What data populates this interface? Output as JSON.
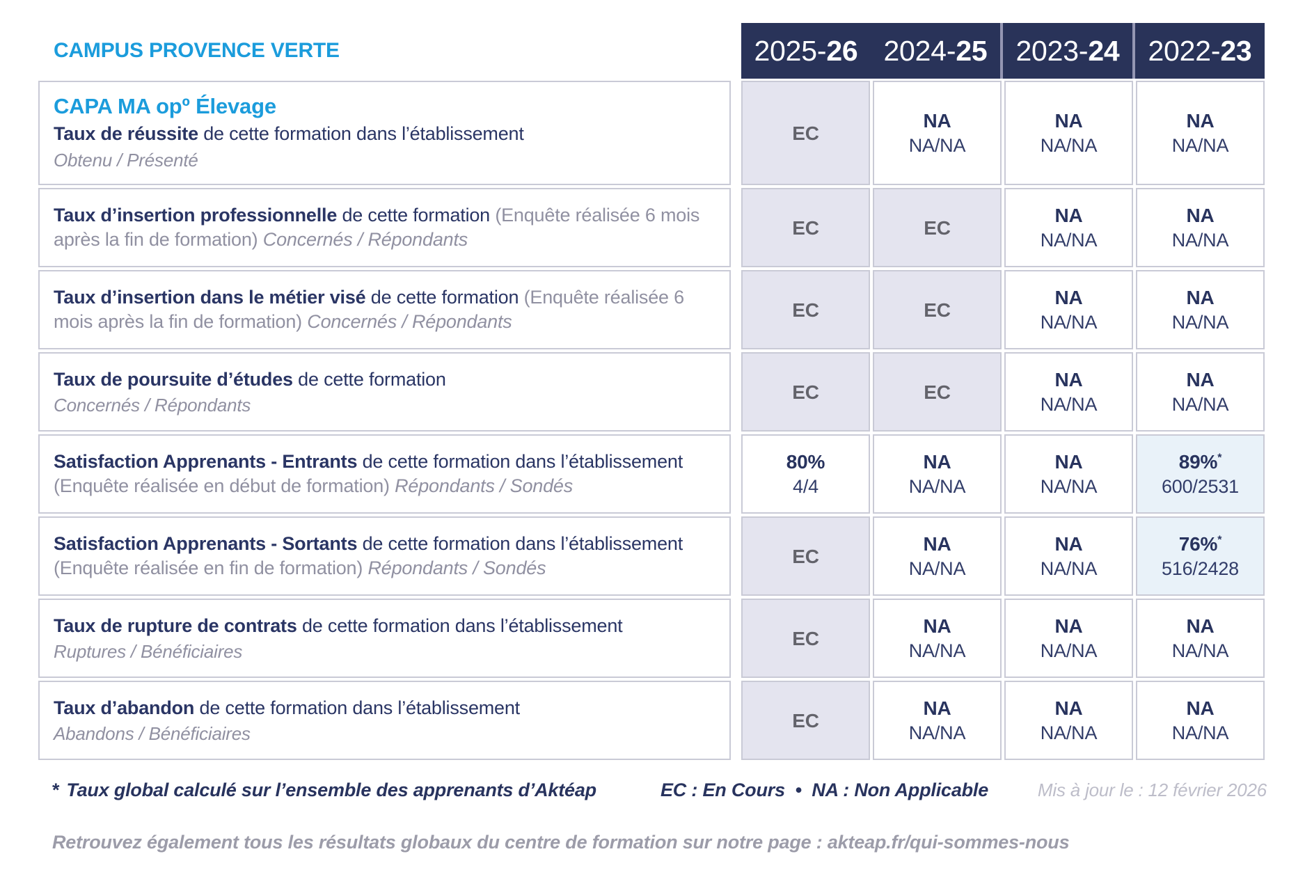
{
  "campus": "CAMPUS PROVENCE VERTE",
  "years": [
    {
      "prefix": "2025-",
      "bold": "26"
    },
    {
      "prefix": "2024-",
      "bold": "25"
    },
    {
      "prefix": "2023-",
      "bold": "24"
    },
    {
      "prefix": "2022-",
      "bold": "23"
    }
  ],
  "rows": [
    {
      "heading": "CAPA MA opº Élevage",
      "bold": "Taux de réussite",
      "mid": "de cette formation dans l’établissement",
      "gray": "",
      "sub": "Obtenu / Présenté",
      "cells": [
        {
          "main": "EC"
        },
        {
          "main": "NA",
          "sub": "NA/NA"
        },
        {
          "main": "NA",
          "sub": "NA/NA"
        },
        {
          "main": "NA",
          "sub": "NA/NA"
        }
      ]
    },
    {
      "bold": "Taux d’insertion professionnelle",
      "mid": "de cette formation",
      "gray": "(Enquête réalisée 6 mois après la fin de formation)",
      "sub": "Concernés / Répondants",
      "cells": [
        {
          "main": "EC"
        },
        {
          "main": "EC"
        },
        {
          "main": "NA",
          "sub": "NA/NA"
        },
        {
          "main": "NA",
          "sub": "NA/NA"
        }
      ]
    },
    {
      "bold": "Taux d’insertion dans le métier visé",
      "mid": "de cette formation",
      "gray": "(Enquête réalisée 6 mois après la fin de formation)",
      "sub": "Concernés / Répondants",
      "cells": [
        {
          "main": "EC"
        },
        {
          "main": "EC"
        },
        {
          "main": "NA",
          "sub": "NA/NA"
        },
        {
          "main": "NA",
          "sub": "NA/NA"
        }
      ]
    },
    {
      "bold": "Taux de poursuite d’études",
      "mid": "de cette formation",
      "gray": "",
      "sub": "Concernés / Répondants",
      "cells": [
        {
          "main": "EC"
        },
        {
          "main": "EC"
        },
        {
          "main": "NA",
          "sub": "NA/NA"
        },
        {
          "main": "NA",
          "sub": "NA/NA"
        }
      ]
    },
    {
      "bold": "Satisfaction Apprenants - Entrants",
      "mid": "de cette formation dans l’établissement",
      "gray": "(Enquête réalisée en début de formation)",
      "sub": "Répondants / Sondés",
      "cells": [
        {
          "main": "80%",
          "sub": "4/4"
        },
        {
          "main": "NA",
          "sub": "NA/NA"
        },
        {
          "main": "NA",
          "sub": "NA/NA"
        },
        {
          "main": "89%",
          "star": "*",
          "sub": "600/2531"
        }
      ]
    },
    {
      "bold": "Satisfaction Apprenants - Sortants",
      "mid": "de cette formation dans l’établissement",
      "gray": "(Enquête réalisée en fin de formation)",
      "sub": "Répondants / Sondés",
      "cells": [
        {
          "main": "EC"
        },
        {
          "main": "NA",
          "sub": "NA/NA"
        },
        {
          "main": "NA",
          "sub": "NA/NA"
        },
        {
          "main": "76%",
          "star": "*",
          "sub": "516/2428"
        }
      ]
    },
    {
      "bold": "Taux de rupture de contrats",
      "mid": "de cette formation dans l’établissement",
      "gray": "",
      "sub": "Ruptures / Bénéficiaires",
      "cells": [
        {
          "main": "EC"
        },
        {
          "main": "NA",
          "sub": "NA/NA"
        },
        {
          "main": "NA",
          "sub": "NA/NA"
        },
        {
          "main": "NA",
          "sub": "NA/NA"
        }
      ]
    },
    {
      "bold": "Taux d’abandon",
      "mid": "de cette formation dans l’établissement",
      "gray": "",
      "sub": "Abandons / Bénéficiaires",
      "cells": [
        {
          "main": "EC"
        },
        {
          "main": "NA",
          "sub": "NA/NA"
        },
        {
          "main": "NA",
          "sub": "NA/NA"
        },
        {
          "main": "NA",
          "sub": "NA/NA"
        }
      ]
    }
  ],
  "footer": {
    "star": "*",
    "note": "Taux global calculé sur l’ensemble des apprenants d’Aktéap",
    "legend": "EC : En Cours  •  NA : Non Applicable",
    "updated": "Mis à jour le : 12 février 2026",
    "info": "Retrouvez également tous les résultats globaux du centre de formation sur notre page : akteap.fr/qui-sommes-nous"
  },
  "colors": {
    "accent_blue": "#1B9CDC",
    "navy_text": "#28335E",
    "header_bg": "#293359",
    "lavender_cell_bg": "#E4E4EF",
    "highlight_cell_bg": "#E9F2F9",
    "gray_text": "#9090A1"
  }
}
